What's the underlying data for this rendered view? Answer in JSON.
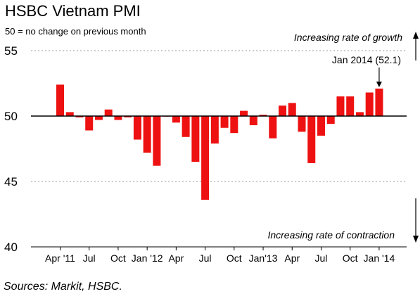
{
  "chart_data": {
    "type": "bar",
    "title": "HSBC Vietnam PMI",
    "subtitle": "50 = no change on previous month",
    "source": "Sources: Markit, HSBC.",
    "baseline": 50,
    "ylim": [
      40,
      55
    ],
    "yticks": [
      40,
      45,
      50,
      55
    ],
    "grid": true,
    "bar_color": "#ee1111",
    "annotations": {
      "growth": "Increasing rate of growth",
      "contraction": "Increasing rate of contraction",
      "callout": "Jan 2014 (52.1)"
    },
    "categories": [
      "Apr 2011",
      "May 2011",
      "Jun 2011",
      "Jul 2011",
      "Aug 2011",
      "Sep 2011",
      "Oct 2011",
      "Nov 2011",
      "Dec 2011",
      "Jan 2012",
      "Feb 2012",
      "Mar 2012",
      "Apr 2012",
      "May 2012",
      "Jun 2012",
      "Jul 2012",
      "Aug 2012",
      "Sep 2012",
      "Oct 2012",
      "Nov 2012",
      "Dec 2012",
      "Jan 2013",
      "Feb 2013",
      "Mar 2013",
      "Apr 2013",
      "May 2013",
      "Jun 2013",
      "Jul 2013",
      "Aug 2013",
      "Sep 2013",
      "Oct 2013",
      "Nov 2013",
      "Dec 2013",
      "Jan 2014"
    ],
    "values": [
      52.4,
      50.3,
      49.9,
      48.9,
      49.7,
      50.5,
      49.7,
      49.9,
      48.2,
      47.2,
      46.2,
      50.0,
      49.5,
      48.4,
      46.5,
      43.6,
      47.9,
      49.1,
      48.7,
      50.4,
      49.3,
      50.1,
      48.3,
      50.8,
      51.0,
      48.8,
      46.4,
      48.5,
      49.4,
      51.5,
      51.5,
      50.3,
      51.8,
      52.1
    ],
    "tick_labels": [
      {
        "index": 0,
        "label": "Apr '11"
      },
      {
        "index": 3,
        "label": "Jul"
      },
      {
        "index": 6,
        "label": "Oct"
      },
      {
        "index": 9,
        "label": "Jan '12"
      },
      {
        "index": 12,
        "label": "Apr"
      },
      {
        "index": 15,
        "label": "Jul"
      },
      {
        "index": 18,
        "label": "Oct"
      },
      {
        "index": 21,
        "label": "Jan'13"
      },
      {
        "index": 24,
        "label": "Apr"
      },
      {
        "index": 27,
        "label": "Jul"
      },
      {
        "index": 30,
        "label": "Oct"
      },
      {
        "index": 33,
        "label": "Jan '14"
      }
    ]
  }
}
